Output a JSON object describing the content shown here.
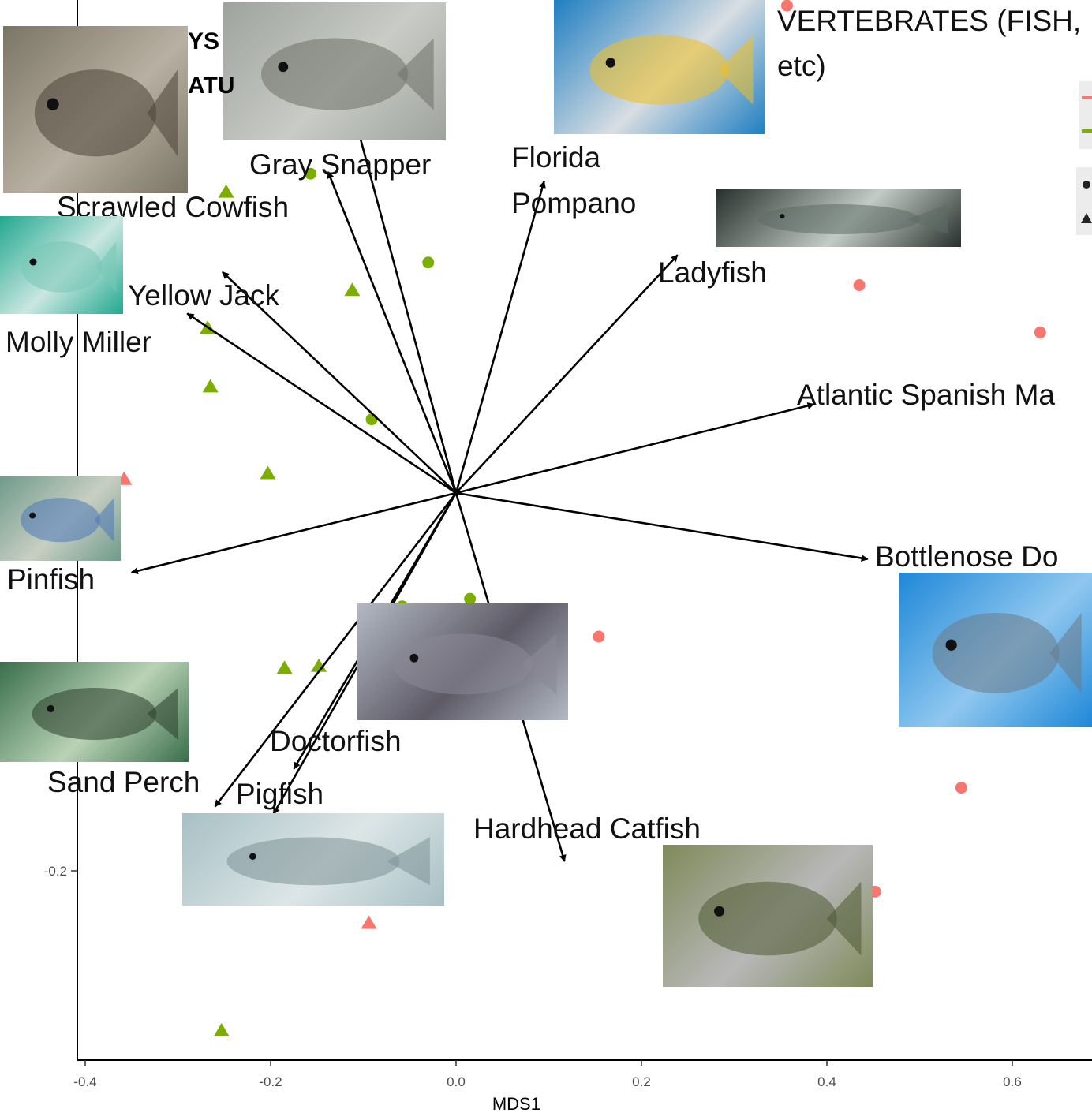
{
  "header": {
    "title_fragment_1": "YS",
    "title_fragment_2": "ATU",
    "group_heading_line1": "VERTEBRATES (FISH,",
    "group_heading_line2": "etc)"
  },
  "chart_data": {
    "type": "scatter",
    "title": "",
    "xlabel": "MDS1",
    "ylabel": "",
    "xlim": [
      -0.42,
      0.7
    ],
    "ylim": [
      -0.3,
      0.29
    ],
    "x_ticks": [
      -0.4,
      -0.2,
      0.0,
      0.2,
      0.4,
      0.6
    ],
    "x_tick_labels": [
      "-0.4",
      "-0.2",
      "0.0",
      "0.2",
      "0.4",
      "0.6"
    ],
    "y_ticks": [
      -0.2
    ],
    "y_tick_labels": [
      "-0.2"
    ],
    "grid": false,
    "legend": "top-right (cropped)",
    "series": [
      {
        "color": "#f8766d",
        "marker": "circle",
        "points": [
          [
            0.357,
            0.258
          ],
          [
            0.328,
            0.136
          ],
          [
            0.435,
            0.11
          ],
          [
            0.63,
            0.085
          ],
          [
            0.154,
            -0.076
          ],
          [
            0.545,
            -0.156
          ],
          [
            0.452,
            -0.211
          ]
        ]
      },
      {
        "color": "#f8766d",
        "marker": "triangle",
        "points": [
          [
            -0.358,
            0.007
          ],
          [
            -0.094,
            -0.228
          ]
        ]
      },
      {
        "color": "#7cae00",
        "marker": "circle",
        "points": [
          [
            -0.125,
            0.227
          ],
          [
            -0.028,
            0.222
          ],
          [
            -0.157,
            0.169
          ],
          [
            -0.03,
            0.122
          ],
          [
            -0.091,
            0.039
          ],
          [
            -0.058,
            -0.06
          ],
          [
            0.015,
            -0.056
          ]
        ]
      },
      {
        "color": "#7cae00",
        "marker": "triangle",
        "points": [
          [
            -0.248,
            0.159
          ],
          [
            -0.112,
            0.107
          ],
          [
            -0.268,
            0.087
          ],
          [
            -0.265,
            0.056
          ],
          [
            -0.203,
            0.01
          ],
          [
            -0.185,
            -0.093
          ],
          [
            -0.148,
            -0.092
          ],
          [
            -0.253,
            -0.285
          ]
        ]
      }
    ],
    "vectors": [
      {
        "name": "Gray Snapper",
        "x": -0.11,
        "y": 0.2
      },
      {
        "name": "Scrawled Cowfish",
        "x": -0.138,
        "y": 0.17
      },
      {
        "name": "Florida Pompano",
        "x": 0.095,
        "y": 0.165
      },
      {
        "name": "Ladyfish",
        "x": 0.239,
        "y": 0.126
      },
      {
        "name": "Yellow Jack",
        "x": -0.252,
        "y": 0.117
      },
      {
        "name": "Molly Miller",
        "x": -0.29,
        "y": 0.095
      },
      {
        "name": "Atlantic Spanish Ma",
        "x": 0.386,
        "y": 0.047
      },
      {
        "name": "Pinfish",
        "x": -0.35,
        "y": -0.042
      },
      {
        "name": "Bottlenose Do",
        "x": 0.444,
        "y": -0.035
      },
      {
        "name": "Doctorfish",
        "x": -0.175,
        "y": -0.146
      },
      {
        "name": "Pigfish",
        "x": -0.197,
        "y": -0.17
      },
      {
        "name": "Sand Perch",
        "x": -0.26,
        "y": -0.166
      },
      {
        "name": "Hardhead Catfish",
        "x": 0.117,
        "y": -0.195
      }
    ]
  },
  "photos": [
    {
      "name": "striped-burrfish-photo",
      "icon": "fish-photo",
      "colors": [
        "#7b7565",
        "#b8b0a2",
        "#4d4436"
      ]
    },
    {
      "name": "gray-snapper-photo",
      "icon": "fish-photo",
      "colors": [
        "#9fa39d",
        "#c9ccc6",
        "#6d7068"
      ]
    },
    {
      "name": "florida-pompano-photo",
      "icon": "fish-photo",
      "colors": [
        "#1f7fc2",
        "#d8dde2",
        "#f0c020"
      ]
    },
    {
      "name": "ladyfish-photo",
      "icon": "fish-photo",
      "colors": [
        "#27302c",
        "#c3cbc6",
        "#5d6b66"
      ]
    },
    {
      "name": "yellow-jack-photo",
      "icon": "fish-photo",
      "colors": [
        "#22a88f",
        "#c9e7e0",
        "#78c7b7"
      ]
    },
    {
      "name": "pinfish-photo",
      "icon": "fish-photo",
      "colors": [
        "#6f9a8b",
        "#c7cfc2",
        "#4c79b8"
      ]
    },
    {
      "name": "sand-perch-photo",
      "icon": "fish-photo",
      "colors": [
        "#3a6f4c",
        "#b9d2b6",
        "#2a3e2a"
      ]
    },
    {
      "name": "doctorfish-photo",
      "icon": "fish-photo",
      "colors": [
        "#b3b9c4",
        "#5d5a66",
        "#8b8895"
      ]
    },
    {
      "name": "pigfish-photo",
      "icon": "fish-photo",
      "colors": [
        "#a7c0c5",
        "#dde6e7",
        "#7d9295"
      ]
    },
    {
      "name": "hardhead-catfish-photo",
      "icon": "fish-photo",
      "colors": [
        "#7f8a5a",
        "#b8b8b8",
        "#4f5a33"
      ]
    },
    {
      "name": "bottlenose-dolphin-photo",
      "icon": "dolphin-photo",
      "colors": [
        "#1f88d8",
        "#8fc7ef",
        "#6c7a86"
      ]
    }
  ]
}
